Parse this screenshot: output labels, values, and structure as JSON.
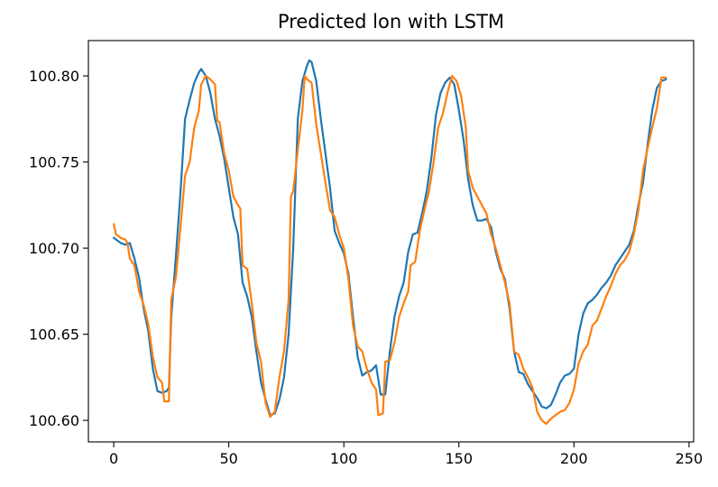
{
  "chart_data": {
    "type": "line",
    "title": "Predicted lon with LSTM",
    "xlabel": "",
    "ylabel": "",
    "xlim": [
      -11,
      252
    ],
    "ylim": [
      100.5875,
      100.8205
    ],
    "xticks": [
      0,
      50,
      100,
      150,
      200,
      250
    ],
    "xtick_labels": [
      "0",
      "50",
      "100",
      "150",
      "200",
      "250"
    ],
    "yticks": [
      100.6,
      100.65,
      100.7,
      100.75,
      100.8
    ],
    "ytick_labels": [
      "100.60",
      "100.65",
      "100.70",
      "100.75",
      "100.80"
    ],
    "grid": false,
    "legend": "none",
    "series": [
      {
        "color": "#1f77b4",
        "points": [
          [
            0,
            100.706
          ],
          [
            3,
            100.703
          ],
          [
            5,
            100.702
          ],
          [
            7,
            100.703
          ],
          [
            9,
            100.694
          ],
          [
            11,
            100.683
          ],
          [
            13,
            100.665
          ],
          [
            15,
            100.652
          ],
          [
            17,
            100.63
          ],
          [
            19,
            100.617
          ],
          [
            21,
            100.616
          ],
          [
            23,
            100.617
          ],
          [
            24,
            100.619
          ],
          [
            25,
            100.66
          ],
          [
            27,
            100.695
          ],
          [
            29,
            100.732
          ],
          [
            31,
            100.775
          ],
          [
            33,
            100.786
          ],
          [
            35,
            100.796
          ],
          [
            37,
            100.802
          ],
          [
            38,
            100.804
          ],
          [
            40,
            100.8
          ],
          [
            42,
            100.79
          ],
          [
            44,
            100.775
          ],
          [
            46,
            100.765
          ],
          [
            48,
            100.752
          ],
          [
            50,
            100.735
          ],
          [
            52,
            100.718
          ],
          [
            54,
            100.708
          ],
          [
            56,
            100.68
          ],
          [
            58,
            100.672
          ],
          [
            60,
            100.66
          ],
          [
            62,
            100.64
          ],
          [
            64,
            100.622
          ],
          [
            66,
            100.612
          ],
          [
            68,
            100.603
          ],
          [
            70,
            100.604
          ],
          [
            72,
            100.612
          ],
          [
            74,
            100.625
          ],
          [
            76,
            100.65
          ],
          [
            78,
            100.7
          ],
          [
            80,
            100.775
          ],
          [
            82,
            100.797
          ],
          [
            84,
            100.806
          ],
          [
            85,
            100.809
          ],
          [
            86,
            100.808
          ],
          [
            88,
            100.797
          ],
          [
            90,
            100.775
          ],
          [
            92,
            100.755
          ],
          [
            94,
            100.735
          ],
          [
            96,
            100.71
          ],
          [
            98,
            100.703
          ],
          [
            100,
            100.697
          ],
          [
            102,
            100.685
          ],
          [
            104,
            100.66
          ],
          [
            106,
            100.637
          ],
          [
            108,
            100.626
          ],
          [
            110,
            100.628
          ],
          [
            112,
            100.629
          ],
          [
            114,
            100.632
          ],
          [
            116,
            100.615
          ],
          [
            118,
            100.615
          ],
          [
            120,
            100.64
          ],
          [
            122,
            100.66
          ],
          [
            124,
            100.672
          ],
          [
            126,
            100.68
          ],
          [
            128,
            100.698
          ],
          [
            130,
            100.708
          ],
          [
            132,
            100.709
          ],
          [
            134,
            100.72
          ],
          [
            136,
            100.733
          ],
          [
            138,
            100.752
          ],
          [
            140,
            100.777
          ],
          [
            142,
            100.79
          ],
          [
            144,
            100.796
          ],
          [
            146,
            100.799
          ],
          [
            148,
            100.795
          ],
          [
            150,
            100.78
          ],
          [
            152,
            100.763
          ],
          [
            154,
            100.74
          ],
          [
            156,
            100.725
          ],
          [
            158,
            100.716
          ],
          [
            160,
            100.716
          ],
          [
            162,
            100.717
          ],
          [
            164,
            100.712
          ],
          [
            166,
            100.698
          ],
          [
            168,
            100.688
          ],
          [
            170,
            100.682
          ],
          [
            172,
            100.665
          ],
          [
            174,
            100.64
          ],
          [
            176,
            100.628
          ],
          [
            178,
            100.627
          ],
          [
            180,
            100.621
          ],
          [
            182,
            100.617
          ],
          [
            184,
            100.613
          ],
          [
            186,
            100.608
          ],
          [
            188,
            100.607
          ],
          [
            190,
            100.609
          ],
          [
            192,
            100.615
          ],
          [
            194,
            100.622
          ],
          [
            196,
            100.626
          ],
          [
            198,
            100.627
          ],
          [
            200,
            100.63
          ],
          [
            202,
            100.65
          ],
          [
            204,
            100.662
          ],
          [
            206,
            100.668
          ],
          [
            208,
            100.67
          ],
          [
            210,
            100.673
          ],
          [
            212,
            100.677
          ],
          [
            214,
            100.68
          ],
          [
            216,
            100.684
          ],
          [
            218,
            100.69
          ],
          [
            220,
            100.694
          ],
          [
            222,
            100.698
          ],
          [
            224,
            100.702
          ],
          [
            226,
            100.71
          ],
          [
            228,
            100.725
          ],
          [
            230,
            100.738
          ],
          [
            232,
            100.76
          ],
          [
            234,
            100.78
          ],
          [
            236,
            100.793
          ],
          [
            238,
            100.797
          ],
          [
            240,
            100.798
          ]
        ]
      },
      {
        "color": "#ff7f0e",
        "points": [
          [
            0,
            100.714
          ],
          [
            1,
            100.708
          ],
          [
            3,
            100.706
          ],
          [
            5,
            100.705
          ],
          [
            6,
            100.703
          ],
          [
            7,
            100.694
          ],
          [
            9,
            100.69
          ],
          [
            11,
            100.675
          ],
          [
            13,
            100.667
          ],
          [
            15,
            100.656
          ],
          [
            17,
            100.637
          ],
          [
            19,
            100.625
          ],
          [
            21,
            100.622
          ],
          [
            22,
            100.611
          ],
          [
            24,
            100.611
          ],
          [
            25,
            100.67
          ],
          [
            27,
            100.683
          ],
          [
            29,
            100.712
          ],
          [
            31,
            100.742
          ],
          [
            33,
            100.75
          ],
          [
            35,
            100.77
          ],
          [
            37,
            100.78
          ],
          [
            38,
            100.795
          ],
          [
            40,
            100.8
          ],
          [
            42,
            100.798
          ],
          [
            44,
            100.795
          ],
          [
            45,
            100.774
          ],
          [
            46,
            100.773
          ],
          [
            48,
            100.755
          ],
          [
            50,
            100.745
          ],
          [
            52,
            100.73
          ],
          [
            54,
            100.725
          ],
          [
            55,
            100.723
          ],
          [
            56,
            100.69
          ],
          [
            58,
            100.688
          ],
          [
            60,
            100.668
          ],
          [
            62,
            100.645
          ],
          [
            64,
            100.634
          ],
          [
            66,
            100.61
          ],
          [
            68,
            100.602
          ],
          [
            70,
            100.605
          ],
          [
            72,
            100.625
          ],
          [
            74,
            100.64
          ],
          [
            76,
            100.67
          ],
          [
            77,
            100.73
          ],
          [
            78,
            100.733
          ],
          [
            80,
            100.757
          ],
          [
            82,
            100.78
          ],
          [
            83,
            100.8
          ],
          [
            84,
            100.798
          ],
          [
            86,
            100.796
          ],
          [
            88,
            100.772
          ],
          [
            90,
            100.755
          ],
          [
            92,
            100.738
          ],
          [
            94,
            100.722
          ],
          [
            96,
            100.718
          ],
          [
            98,
            100.708
          ],
          [
            100,
            100.7
          ],
          [
            102,
            100.682
          ],
          [
            104,
            100.655
          ],
          [
            106,
            100.643
          ],
          [
            108,
            100.64
          ],
          [
            110,
            100.63
          ],
          [
            112,
            100.622
          ],
          [
            114,
            100.618
          ],
          [
            115,
            100.603
          ],
          [
            117,
            100.604
          ],
          [
            118,
            100.634
          ],
          [
            120,
            100.635
          ],
          [
            122,
            100.645
          ],
          [
            124,
            100.66
          ],
          [
            126,
            100.668
          ],
          [
            128,
            100.675
          ],
          [
            129,
            100.69
          ],
          [
            131,
            100.692
          ],
          [
            133,
            100.71
          ],
          [
            135,
            100.722
          ],
          [
            137,
            100.733
          ],
          [
            139,
            100.75
          ],
          [
            141,
            100.77
          ],
          [
            143,
            100.778
          ],
          [
            145,
            100.79
          ],
          [
            147,
            100.8
          ],
          [
            149,
            100.797
          ],
          [
            151,
            100.788
          ],
          [
            153,
            100.77
          ],
          [
            154,
            100.745
          ],
          [
            156,
            100.735
          ],
          [
            158,
            100.73
          ],
          [
            160,
            100.725
          ],
          [
            162,
            100.72
          ],
          [
            164,
            100.708
          ],
          [
            166,
            100.7
          ],
          [
            168,
            100.69
          ],
          [
            170,
            100.68
          ],
          [
            172,
            100.668
          ],
          [
            174,
            100.64
          ],
          [
            176,
            100.638
          ],
          [
            178,
            100.63
          ],
          [
            180,
            100.625
          ],
          [
            182,
            100.619
          ],
          [
            184,
            100.605
          ],
          [
            186,
            100.6
          ],
          [
            188,
            100.598
          ],
          [
            190,
            100.601
          ],
          [
            192,
            100.603
          ],
          [
            194,
            100.605
          ],
          [
            196,
            100.606
          ],
          [
            198,
            100.61
          ],
          [
            200,
            100.618
          ],
          [
            202,
            100.633
          ],
          [
            204,
            100.64
          ],
          [
            206,
            100.644
          ],
          [
            208,
            100.655
          ],
          [
            210,
            100.658
          ],
          [
            212,
            100.665
          ],
          [
            214,
            100.672
          ],
          [
            216,
            100.678
          ],
          [
            218,
            100.685
          ],
          [
            220,
            100.69
          ],
          [
            222,
            100.693
          ],
          [
            224,
            100.698
          ],
          [
            226,
            100.708
          ],
          [
            228,
            100.722
          ],
          [
            230,
            100.745
          ],
          [
            232,
            100.758
          ],
          [
            234,
            100.77
          ],
          [
            236,
            100.781
          ],
          [
            238,
            100.799
          ],
          [
            240,
            100.799
          ]
        ]
      }
    ]
  }
}
